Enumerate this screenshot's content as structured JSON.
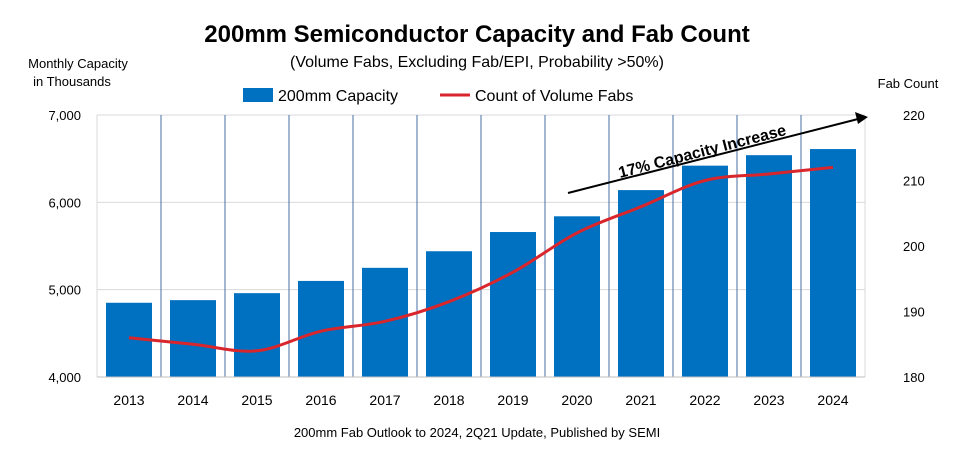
{
  "chart_data": {
    "type": "bar+line",
    "title": "200mm Semiconductor Capacity and Fab Count",
    "subtitle": "(Volume Fabs, Excluding Fab/EPI, Probability >50%)",
    "ylabel_left": [
      "Monthly Capacity",
      "in Thousands"
    ],
    "ylabel_right": "Fab Count",
    "footnote": "200mm Fab Outlook to 2024, 2Q21 Update, Published by SEMI",
    "annotation": "17% Capacity Increase",
    "categories": [
      "2013",
      "2014",
      "2015",
      "2016",
      "2017",
      "2018",
      "2019",
      "2020",
      "2021",
      "2022",
      "2023",
      "2024"
    ],
    "ylim_left": [
      4000,
      7000
    ],
    "yticks_left": [
      "4,000",
      "5,000",
      "6,000",
      "7,000"
    ],
    "ylim_right": [
      180,
      220
    ],
    "yticks_right": [
      "180",
      "190",
      "200",
      "210",
      "220"
    ],
    "grid": true,
    "legend_position": "top",
    "series": [
      {
        "name": "200mm Capacity",
        "type": "bar",
        "axis": "left",
        "color": "#0070C0",
        "values": [
          4850,
          4880,
          4960,
          5100,
          5250,
          5440,
          5660,
          5840,
          6140,
          6420,
          6540,
          6610
        ]
      },
      {
        "name": "Count of Volume Fabs",
        "type": "line",
        "axis": "right",
        "color": "#D9262C",
        "values": [
          186,
          185,
          184,
          187,
          188.5,
          191.5,
          196,
          202,
          206,
          210,
          211,
          212
        ]
      }
    ]
  }
}
